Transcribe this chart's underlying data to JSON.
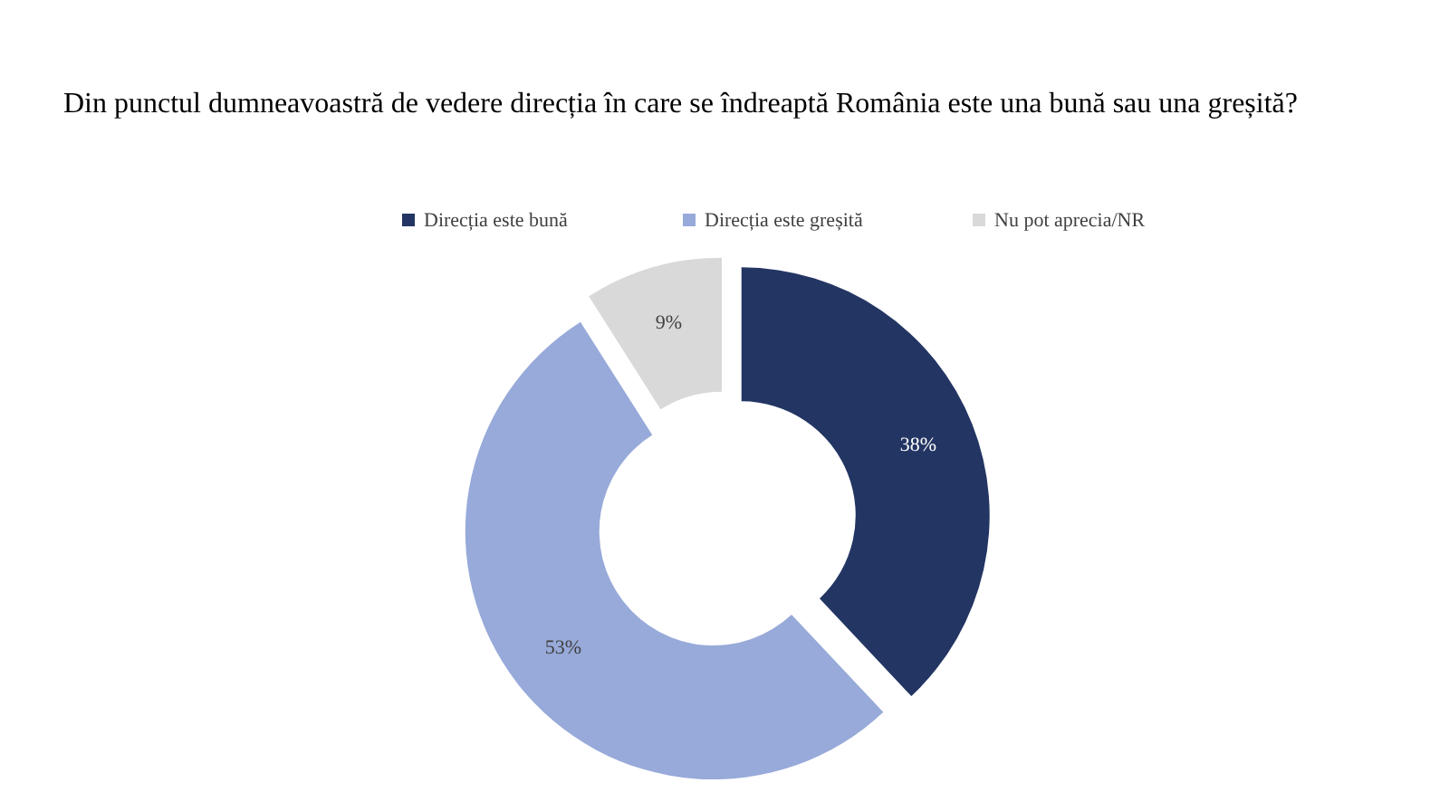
{
  "chart_data": {
    "type": "donut",
    "title": "Din punctul dumneavoastră de vedere direcția în care se îndreaptă România este una bună sau una greșită?",
    "categories": [
      "Direcția este bună",
      "Direcția este greșită",
      "Nu pot aprecia/NR"
    ],
    "values": [
      38,
      53,
      9
    ],
    "colors": [
      "#233563",
      "#97aad9",
      "#d9d9d9"
    ],
    "value_labels": [
      "38%",
      "53%",
      "9%"
    ],
    "legend": "top"
  }
}
